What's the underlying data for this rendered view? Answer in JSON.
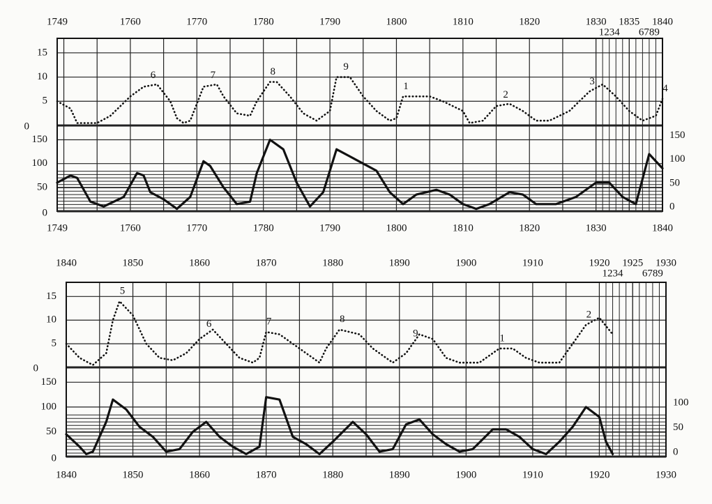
{
  "chart_data": [
    {
      "type": "line",
      "xlim": [
        1749,
        1840
      ],
      "xticks": [
        1749,
        1760,
        1770,
        1780,
        1790,
        1800,
        1810,
        1820,
        1830,
        1840
      ],
      "top_xticks": [
        1749,
        1760,
        1770,
        1780,
        1790,
        1800,
        1810,
        1820,
        1830,
        1835,
        1840
      ],
      "year_digits": [
        {
          "value": 1832,
          "label": "1234"
        },
        {
          "value": 1838,
          "label": "6789"
        }
      ],
      "ylim": [
        0,
        18
      ],
      "yticks": [
        0,
        5,
        10,
        15
      ],
      "y2lim": [
        0,
        180
      ],
      "y2ticks": [
        0,
        50,
        100,
        150
      ],
      "right_y2ticks": [
        0,
        50,
        100,
        150
      ],
      "xgrid_step": 5,
      "fine_xgrid": [
        1830,
        1840
      ],
      "hatch_top": 85,
      "hatch_step": 7,
      "series": [
        {
          "dash": "dotted",
          "color": "#111111",
          "x": [
            1749,
            1751,
            1752,
            1755,
            1757,
            1760,
            1762,
            1764,
            1766,
            1767,
            1768,
            1769,
            1771,
            1773,
            1774,
            1776,
            1778,
            1779,
            1781,
            1782,
            1784,
            1786,
            1788,
            1790,
            1791,
            1793,
            1795,
            1797,
            1799,
            1800,
            1801,
            1805,
            1807,
            1810,
            1811,
            1813,
            1815,
            1817,
            1819,
            1821,
            1823,
            1826,
            1829,
            1831,
            1833,
            1835,
            1837,
            1839,
            1840
          ],
          "values": [
            5,
            3.5,
            0.5,
            0.5,
            2,
            6,
            8,
            8.5,
            5,
            1.5,
            0.5,
            1,
            8,
            8.5,
            6,
            2.5,
            2,
            5,
            9,
            9,
            6,
            2.5,
            1,
            3,
            10,
            10,
            6,
            3,
            1,
            1.5,
            6,
            6,
            5,
            3,
            0.5,
            1,
            4,
            4.5,
            3,
            1,
            1,
            3,
            7,
            8.5,
            6,
            3,
            1,
            2,
            5.5
          ]
        },
        {
          "axis": "y2",
          "color": "#111111",
          "x": [
            1749,
            1751,
            1752,
            1754,
            1756,
            1759,
            1761,
            1762,
            1763,
            1765,
            1767,
            1769,
            1771,
            1772,
            1774,
            1776,
            1778,
            1779,
            1781,
            1783,
            1785,
            1787,
            1789,
            1791,
            1793,
            1795,
            1797,
            1799,
            1801,
            1803,
            1806,
            1808,
            1810,
            1812,
            1814,
            1817,
            1819,
            1821,
            1824,
            1827,
            1830,
            1832,
            1834,
            1836,
            1838,
            1840
          ],
          "values": [
            60,
            75,
            70,
            20,
            10,
            30,
            80,
            75,
            40,
            25,
            5,
            30,
            105,
            95,
            50,
            15,
            20,
            80,
            150,
            130,
            60,
            10,
            40,
            130,
            115,
            100,
            85,
            40,
            15,
            35,
            45,
            35,
            15,
            5,
            15,
            40,
            35,
            15,
            15,
            30,
            60,
            60,
            30,
            15,
            120,
            90
          ]
        }
      ],
      "peak_labels": [
        {
          "x": 1763,
          "label": "6"
        },
        {
          "x": 1772,
          "label": "7"
        },
        {
          "x": 1781,
          "label": "8"
        },
        {
          "x": 1792,
          "label": "9"
        },
        {
          "x": 1801,
          "label": "1"
        },
        {
          "x": 1816,
          "label": "2"
        },
        {
          "x": 1829,
          "label": "3"
        },
        {
          "x": 1840,
          "label": "4"
        }
      ]
    },
    {
      "type": "line",
      "xlim": [
        1840,
        1930
      ],
      "xticks": [
        1840,
        1850,
        1860,
        1870,
        1880,
        1890,
        1900,
        1910,
        1920,
        1930
      ],
      "top_xticks": [
        1840,
        1850,
        1860,
        1870,
        1880,
        1890,
        1900,
        1910,
        1920,
        1925,
        1930
      ],
      "year_digits": [
        {
          "value": 1922,
          "label": "1234"
        },
        {
          "value": 1928,
          "label": "6789"
        }
      ],
      "ylim": [
        0,
        18
      ],
      "yticks": [
        0,
        5,
        10,
        15
      ],
      "y2lim": [
        0,
        180
      ],
      "y2ticks": [
        0,
        50,
        100,
        150
      ],
      "right_y2ticks": [
        0,
        50,
        100
      ],
      "xgrid_step": 5,
      "fine_xgrid": [
        1920,
        1930
      ],
      "hatch_top": 90,
      "hatch_step": 7,
      "series": [
        {
          "dash": "dotted",
          "color": "#111111",
          "x": [
            1840,
            1842,
            1844,
            1846,
            1847,
            1848,
            1850,
            1852,
            1854,
            1856,
            1858,
            1860,
            1862,
            1864,
            1866,
            1868,
            1869,
            1870,
            1872,
            1874,
            1876,
            1878,
            1879,
            1881,
            1884,
            1886,
            1889,
            1891,
            1893,
            1895,
            1897,
            1899,
            1902,
            1905,
            1907,
            1909,
            1911,
            1914,
            1916,
            1918,
            1920,
            1922
          ],
          "values": [
            5,
            2,
            0.5,
            3,
            10,
            14,
            11,
            5,
            2,
            1.5,
            3,
            6,
            8,
            5,
            2,
            1,
            2,
            7.5,
            7,
            5,
            3,
            1,
            4,
            8,
            7,
            4,
            1,
            3,
            7,
            6,
            2,
            1,
            1,
            4,
            4,
            2,
            1,
            1,
            5,
            9,
            10.5,
            7
          ]
        },
        {
          "axis": "y2",
          "color": "#111111",
          "x": [
            1840,
            1842,
            1843,
            1844,
            1846,
            1847,
            1849,
            1851,
            1853,
            1855,
            1857,
            1859,
            1861,
            1863,
            1865,
            1867,
            1869,
            1870,
            1872,
            1874,
            1876,
            1878,
            1880,
            1883,
            1885,
            1887,
            1889,
            1891,
            1893,
            1895,
            1897,
            1899,
            1901,
            1904,
            1906,
            1908,
            1910,
            1912,
            1914,
            1916,
            1918,
            1920,
            1921,
            1922
          ],
          "values": [
            45,
            20,
            5,
            10,
            70,
            115,
            95,
            60,
            40,
            10,
            15,
            50,
            70,
            40,
            20,
            5,
            20,
            120,
            115,
            40,
            25,
            5,
            30,
            70,
            45,
            10,
            15,
            65,
            75,
            45,
            25,
            10,
            15,
            55,
            55,
            40,
            15,
            5,
            30,
            60,
            100,
            80,
            30,
            5
          ]
        }
      ],
      "peak_labels": [
        {
          "x": 1848,
          "label": "5"
        },
        {
          "x": 1861,
          "label": "6"
        },
        {
          "x": 1870,
          "label": "7"
        },
        {
          "x": 1881,
          "label": "8"
        },
        {
          "x": 1892,
          "label": "9"
        },
        {
          "x": 1905,
          "label": "1"
        },
        {
          "x": 1918,
          "label": "2"
        }
      ]
    }
  ]
}
